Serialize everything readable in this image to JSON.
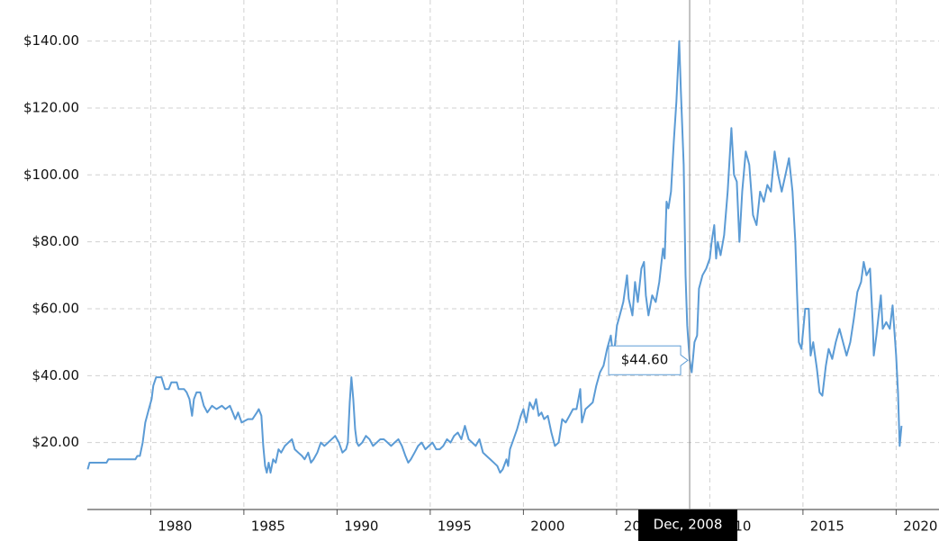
{
  "chart_data": {
    "type": "line",
    "color": "#5b9bd5",
    "x": [
      1976.62,
      1976.72,
      1977.63,
      1977.73,
      1979.18,
      1979.28,
      1979.42,
      1979.57,
      1979.71,
      1979.9,
      1980.05,
      1980.14,
      1980.29,
      1980.58,
      1980.77,
      1980.97,
      1981.11,
      1981.4,
      1981.5,
      1981.79,
      1981.93,
      1982.08,
      1982.22,
      1982.32,
      1982.46,
      1982.66,
      1982.85,
      1983.04,
      1983.29,
      1983.53,
      1983.82,
      1984.01,
      1984.25,
      1984.4,
      1984.54,
      1984.69,
      1984.88,
      1985.22,
      1985.46,
      1985.7,
      1985.8,
      1985.94,
      1986.04,
      1986.14,
      1986.23,
      1986.33,
      1986.43,
      1986.57,
      1986.71,
      1986.86,
      1987.0,
      1987.2,
      1987.39,
      1987.58,
      1987.73,
      1987.92,
      1988.12,
      1988.26,
      1988.45,
      1988.6,
      1988.74,
      1988.94,
      1989.13,
      1989.32,
      1989.52,
      1989.71,
      1989.9,
      1990.1,
      1990.29,
      1990.48,
      1990.58,
      1990.68,
      1990.77,
      1990.87,
      1990.97,
      1991.06,
      1991.16,
      1991.35,
      1991.55,
      1991.74,
      1991.93,
      1992.13,
      1992.32,
      1992.51,
      1992.71,
      1992.9,
      1993.09,
      1993.29,
      1993.48,
      1993.67,
      1993.82,
      1993.96,
      1994.16,
      1994.35,
      1994.54,
      1994.74,
      1994.93,
      1995.12,
      1995.32,
      1995.51,
      1995.7,
      1995.9,
      1996.09,
      1996.28,
      1996.48,
      1996.67,
      1996.86,
      1997.06,
      1997.25,
      1997.44,
      1997.64,
      1997.83,
      1998.02,
      1998.22,
      1998.41,
      1998.6,
      1998.75,
      1998.89,
      1999.09,
      1999.18,
      1999.28,
      1999.47,
      1999.66,
      1999.86,
      2000.0,
      2000.15,
      2000.34,
      2000.53,
      2000.68,
      2000.82,
      2000.97,
      2001.11,
      2001.31,
      2001.5,
      2001.69,
      2001.89,
      2002.08,
      2002.27,
      2002.47,
      2002.66,
      2002.85,
      2003.05,
      2003.14,
      2003.33,
      2003.53,
      2003.72,
      2003.91,
      2004.11,
      2004.3,
      2004.49,
      2004.69,
      2004.83,
      2005.02,
      2005.17,
      2005.36,
      2005.56,
      2005.65,
      2005.85,
      2005.99,
      2006.14,
      2006.33,
      2006.47,
      2006.57,
      2006.71,
      2006.91,
      2007.1,
      2007.29,
      2007.49,
      2007.58,
      2007.68,
      2007.78,
      2007.92,
      2008.07,
      2008.21,
      2008.36,
      2008.45,
      2008.6,
      2008.7,
      2008.79,
      2008.92,
      2009.03,
      2009.18,
      2009.32,
      2009.42,
      2009.61,
      2009.81,
      2010.0,
      2010.1,
      2010.24,
      2010.34,
      2010.43,
      2010.58,
      2010.77,
      2010.96,
      2011.16,
      2011.3,
      2011.45,
      2011.59,
      2011.74,
      2011.93,
      2012.12,
      2012.32,
      2012.51,
      2012.7,
      2012.9,
      2013.09,
      2013.28,
      2013.48,
      2013.67,
      2013.86,
      2014.06,
      2014.25,
      2014.44,
      2014.59,
      2014.68,
      2014.78,
      2014.92,
      2015.12,
      2015.31,
      2015.41,
      2015.55,
      2015.75,
      2015.89,
      2016.04,
      2016.23,
      2016.38,
      2016.57,
      2016.76,
      2016.96,
      2017.15,
      2017.34,
      2017.54,
      2017.73,
      2017.92,
      2018.12,
      2018.26,
      2018.41,
      2018.6,
      2018.75,
      2018.8,
      2018.94,
      2019.04,
      2019.18,
      2019.28,
      2019.47,
      2019.66,
      2019.81,
      2020.0,
      2020.1,
      2020.19,
      2020.29
    ],
    "values": [
      12,
      14,
      14,
      15,
      15,
      16,
      16,
      20,
      26,
      30,
      33,
      37,
      39.5,
      39.5,
      36,
      36,
      38,
      38,
      36,
      36,
      35,
      33,
      28,
      33,
      35,
      35,
      31,
      29,
      31,
      30,
      31,
      30,
      31,
      29,
      27,
      29,
      26,
      27,
      27,
      29,
      30,
      28,
      19,
      13,
      11,
      14,
      11,
      15,
      14,
      18,
      17,
      19,
      20,
      21,
      18,
      17,
      16,
      15,
      17,
      14,
      15,
      17,
      20,
      19,
      20,
      21,
      22,
      20,
      17,
      18,
      20,
      32,
      39.5,
      33,
      24,
      20,
      19,
      20,
      22,
      21,
      19,
      20,
      21,
      21,
      20,
      19,
      20,
      21,
      19,
      16,
      14,
      15,
      17,
      19,
      20,
      18,
      19,
      20,
      18,
      18,
      19,
      21,
      20,
      22,
      23,
      21,
      25,
      21,
      20,
      19,
      21,
      17,
      16,
      15,
      14,
      13,
      11,
      12,
      15,
      13,
      18,
      21,
      24,
      28,
      30,
      26,
      32,
      30,
      33,
      28,
      29,
      27,
      28,
      23,
      19,
      20,
      27,
      26,
      28,
      30,
      30,
      36,
      26,
      30,
      31,
      32,
      37,
      41,
      43,
      48,
      52,
      45,
      55,
      58,
      62,
      70,
      63,
      58,
      68,
      62,
      72,
      74,
      64,
      58,
      64,
      62,
      68,
      78,
      75,
      92,
      90,
      95,
      110,
      122,
      140,
      125,
      103,
      70,
      55,
      44.6,
      41,
      50,
      52,
      66,
      70,
      72,
      75,
      80,
      85,
      75,
      80,
      76,
      82,
      95,
      114,
      100,
      98,
      80,
      95,
      107,
      103,
      88,
      85,
      95,
      92,
      97,
      95,
      107,
      100,
      95,
      100,
      105,
      95,
      80,
      65,
      50,
      48,
      60,
      60,
      46,
      50,
      42,
      35,
      34,
      43,
      48,
      45,
      50,
      54,
      50,
      46,
      50,
      57,
      65,
      68,
      74,
      70,
      72,
      55,
      46,
      52,
      57,
      64,
      54,
      56,
      54,
      61,
      46,
      35,
      19,
      25
    ],
    "xlim": [
      1976.6,
      2022.3
    ],
    "xticks": [
      1980,
      1985,
      1990,
      1995,
      2000,
      2005,
      2010,
      2015,
      2020
    ],
    "ylim": [
      0,
      150
    ],
    "yticks": [
      {
        "value": 20,
        "label": "$20.00"
      },
      {
        "value": 40,
        "label": "$40.00"
      },
      {
        "value": 60,
        "label": "$60.00"
      },
      {
        "value": 80,
        "label": "$80.00"
      },
      {
        "value": 100,
        "label": "$100.00"
      },
      {
        "value": 120,
        "label": "$120.00"
      },
      {
        "value": 140,
        "label": "$140.00"
      }
    ],
    "grid": true,
    "tooltip": {
      "x": 2008.92,
      "x_label": "Dec, 2008",
      "value": 44.6,
      "label": "$44.60"
    }
  }
}
